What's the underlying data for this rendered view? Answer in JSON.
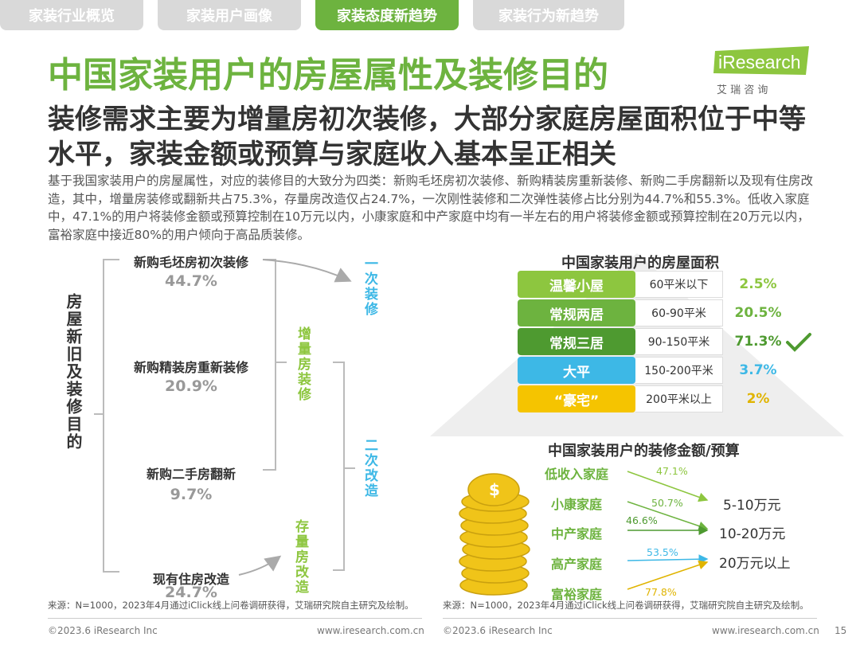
{
  "tabs": [
    {
      "label": "家装行业概览"
    },
    {
      "label": "家装用户画像"
    },
    {
      "label": "家装态度新趋势"
    },
    {
      "label": "家装行为新趋势"
    }
  ],
  "title": "中国家装用户的房屋属性及装修目的",
  "logo": {
    "brand": "iResearch",
    "sub": "艾 瑞 咨 询"
  },
  "subtitle": "装修需求主要为增量房初次装修，大部分家庭房屋面积位于中等水平，家装金额或预算与家庭收入基本呈正相关",
  "description": "基于我国家装用户的房屋属性，对应的装修目的大致分为四类：新购毛坯房初次装修、新购精装房重新装修、新购二手房翻新以及现有住房改造，其中，增量房装修或翻新共占75.3%，存量房改造仅占24.7%，一次刚性装修和二次弹性装修占比分别为44.7%和55.3%。低收入家庭中，47.1%的用户将装修金额或预算控制在10万元以内，小康家庭和中产家庭中均有一半左右的用户将装修金额或预算控制在20万元以内，富裕家庭中接近80%的用户倾向于高品质装修。",
  "purpose": {
    "root_label": "房屋新旧及装修目的",
    "items": [
      {
        "label": "新购毛坯房初次装修",
        "pct": "44.7%"
      },
      {
        "label": "新购精装房重新装修",
        "pct": "20.9%"
      },
      {
        "label": "新购二手房翻新",
        "pct": "9.7%"
      },
      {
        "label": "现有住房改造",
        "pct": "24.7%"
      }
    ],
    "groups": {
      "first": "一次装修",
      "incremental": "增量房装修",
      "second": "二次改造",
      "stock": "存量房改造"
    }
  },
  "area": {
    "title": "中国家装用户的房屋面积",
    "rows": [
      {
        "name": "温馨小屋",
        "range": "60平米以下",
        "pct": "2.5%",
        "color": "#8dc63f",
        "pct_color": "#8dc63f"
      },
      {
        "name": "常规两居",
        "range": "60-90平米",
        "pct": "20.5%",
        "color": "#6db33f",
        "pct_color": "#6db33f"
      },
      {
        "name": "常规三居",
        "range": "90-150平米",
        "pct": "71.3%",
        "color": "#4e9a30",
        "pct_color": "#4e9a30"
      },
      {
        "name": "大平",
        "range": "150-200平米",
        "pct": "3.7%",
        "color": "#3db8e6",
        "pct_color": "#3db8e6"
      },
      {
        "name": "“豪宅”",
        "range": "200平米以上",
        "pct": "2%",
        "color": "#f5c400",
        "pct_color": "#e0b400"
      }
    ]
  },
  "budget": {
    "title": "中国家装用户的装修金额/预算",
    "families": [
      "低收入家庭",
      "小康家庭",
      "中产家庭",
      "高产家庭",
      "富裕家庭"
    ],
    "levels": [
      "5-10万元",
      "10-20万元",
      "20万元以上"
    ],
    "arrows": [
      {
        "pct": "47.1%",
        "color": "#8dc63f"
      },
      {
        "pct": "50.7%",
        "color": "#6db33f"
      },
      {
        "pct": "46.6%",
        "color": "#4e9a30"
      },
      {
        "pct": "53.5%",
        "color": "#3db8e6"
      },
      {
        "pct": "77.8%",
        "color": "#e0b400"
      }
    ]
  },
  "source_text": "来源：N=1000，2023年4月通过iClick线上问卷调研获得，艾瑞研究院自主研究及绘制。",
  "footer": {
    "copyright": "©2023.6 iResearch Inc",
    "url": "www.iresearch.com.cn",
    "page": "15"
  }
}
